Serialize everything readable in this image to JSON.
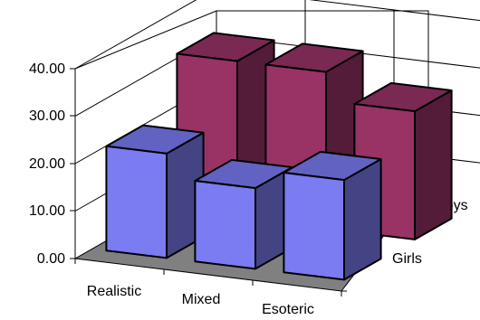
{
  "chart_data": {
    "type": "bar",
    "title": "",
    "xlabel": "",
    "ylabel": "",
    "ylim": [
      0,
      40
    ],
    "yticks": [
      "0.00",
      "10.00",
      "20.00",
      "30.00",
      "40.00"
    ],
    "categories": [
      "Realistic",
      "Mixed",
      "Esoteric"
    ],
    "depth_labels": [
      "Girls",
      "Boys"
    ],
    "grid": true,
    "three_d": true,
    "series": [
      {
        "key": "Boys",
        "color": "#993366",
        "values": [
          33,
          33,
          27
        ]
      },
      {
        "key": "Girls",
        "color": "#7b7bf2",
        "values": [
          22,
          17,
          21
        ]
      }
    ]
  }
}
